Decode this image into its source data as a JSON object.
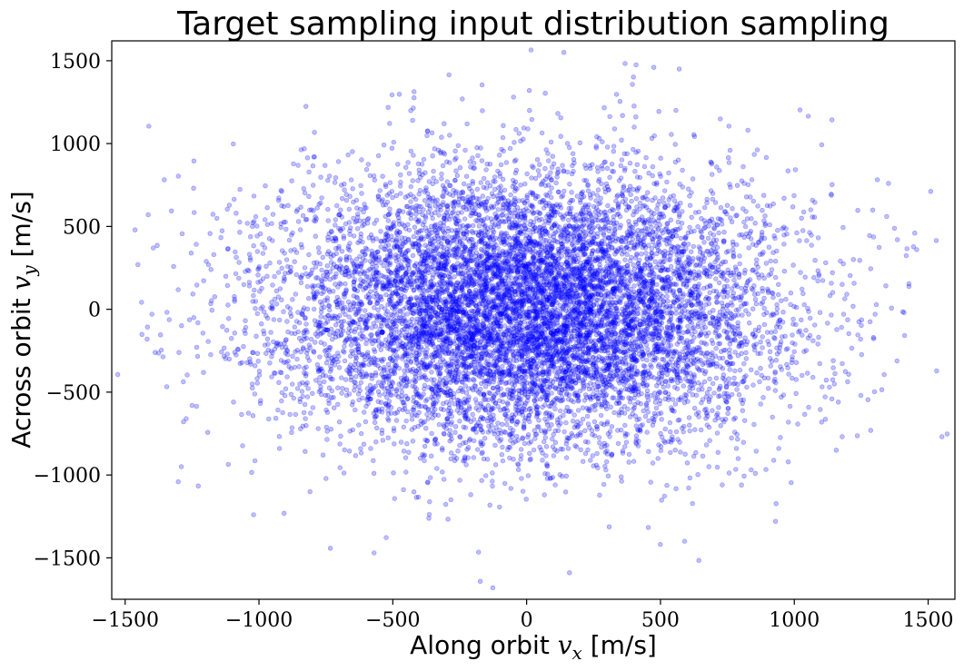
{
  "chart_data": {
    "type": "scatter",
    "title": "Target sampling input distribution sampling",
    "xlabel": {
      "text": "Along orbit ",
      "math": "v",
      "sub": "x",
      "unit": " [m/s]"
    },
    "ylabel": {
      "text": "Across orbit ",
      "math": "v",
      "sub": "y",
      "unit": " [m/s]"
    },
    "xlim": [
      -1550,
      1600
    ],
    "ylim": [
      -1750,
      1620
    ],
    "xticks": [
      -1500,
      -1000,
      -500,
      0,
      500,
      1000,
      1500
    ],
    "yticks": [
      -1500,
      -1000,
      -500,
      0,
      500,
      1000,
      1500
    ],
    "xtick_labels": [
      "−1500",
      "−1000",
      "−500",
      "0",
      "500",
      "1000",
      "1500"
    ],
    "ytick_labels": [
      "−1500",
      "−1000",
      "−500",
      "0",
      "500",
      "1000",
      "1500"
    ],
    "grid": false,
    "legend": "none",
    "marker_color": "#0000ff",
    "marker_alpha": 0.25,
    "distribution": {
      "kind": "gaussian",
      "center_x": 0,
      "center_y": 0,
      "std_x": 460,
      "std_y": 410,
      "n_points": 10000
    },
    "outlier_points": [
      {
        "x": -1400,
        "y": -30
      },
      {
        "x": -1395,
        "y": 370
      },
      {
        "x": -1290,
        "y": -950
      },
      {
        "x": -1250,
        "y": -580
      },
      {
        "x": 1450,
        "y": 460
      },
      {
        "x": 1410,
        "y": -20
      },
      {
        "x": 1385,
        "y": 420
      },
      {
        "x": 1345,
        "y": 560
      },
      {
        "x": 160,
        "y": -1590
      },
      {
        "x": -570,
        "y": -1470
      },
      {
        "x": 475,
        "y": 1460
      },
      {
        "x": -290,
        "y": 1415
      },
      {
        "x": 570,
        "y": 1450
      },
      {
        "x": 10,
        "y": 1320
      },
      {
        "x": -1020,
        "y": -1240
      },
      {
        "x": 930,
        "y": -1280
      },
      {
        "x": 590,
        "y": -1400
      }
    ]
  }
}
